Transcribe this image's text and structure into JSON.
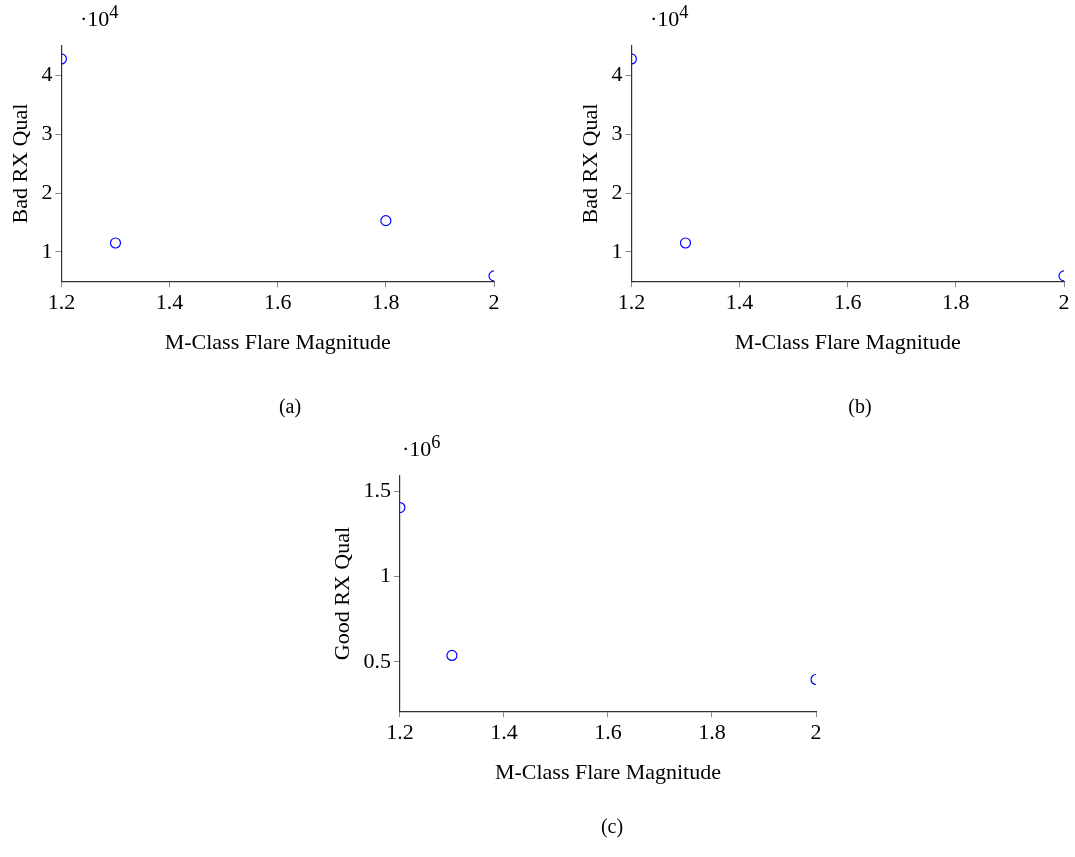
{
  "chart_data": [
    {
      "type": "scatter",
      "xlabel": "M-Class Flare Magnitude",
      "ylabel": "Bad RX Qual",
      "x": [
        1.2,
        1.3,
        1.8,
        2
      ],
      "values": [
        4.28,
        1.15,
        1.53,
        0.59
      ],
      "color": "#0000ff",
      "marker": "circle",
      "xlim": [
        1.2,
        2
      ],
      "xticks": [
        1.2,
        1.4,
        1.6,
        1.8,
        2
      ],
      "ylim": [
        0.5,
        4.5
      ],
      "yticks": [
        1,
        2,
        3,
        4
      ],
      "annotations": [
        "·10$^{4}$",
        "(a)"
      ]
    },
    {
      "type": "scatter",
      "xlabel": "M-Class Flare Magnitude",
      "ylabel": "Bad RX Qual",
      "x": [
        1.2,
        1.3,
        2
      ],
      "values": [
        4.28,
        1.15,
        0.59
      ],
      "color": "#0000ff",
      "marker": "circle",
      "xlim": [
        1.2,
        2
      ],
      "xticks": [
        1.2,
        1.4,
        1.6,
        1.8,
        2
      ],
      "ylim": [
        0.5,
        4.5
      ],
      "yticks": [
        1,
        2,
        3,
        4
      ],
      "annotations": [
        "·10$^{4}$",
        "(b)"
      ]
    },
    {
      "type": "scatter",
      "xlabel": "M-Class Flare Magnitude",
      "ylabel": "Good RX Qual",
      "x": [
        1.2,
        1.3,
        2
      ],
      "values": [
        1.405,
        0.537,
        0.396
      ],
      "color": "#0000ff",
      "marker": "circle",
      "xlim": [
        1.2,
        2
      ],
      "xticks": [
        1.2,
        1.4,
        1.6,
        1.8,
        2
      ],
      "ylim": [
        0.21,
        1.59
      ],
      "yticks": [
        0.5,
        1,
        1.5
      ],
      "annotations": [
        "·10$^{6}$",
        "(c)"
      ]
    }
  ]
}
